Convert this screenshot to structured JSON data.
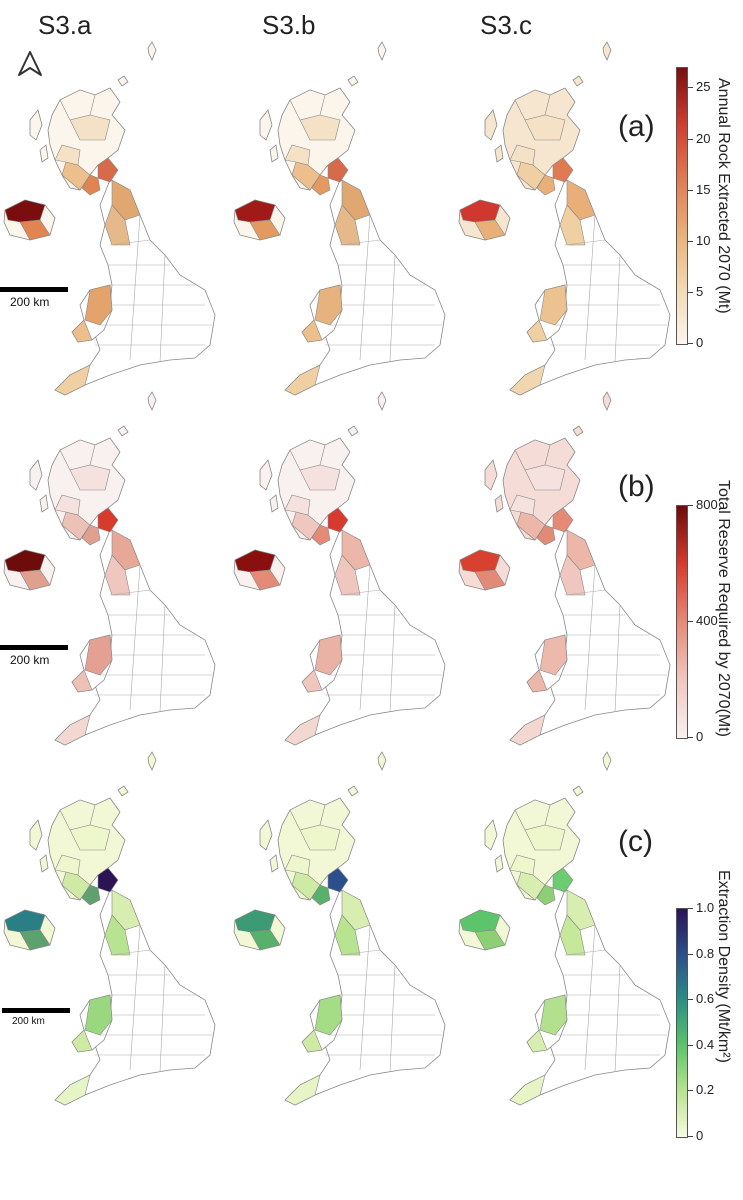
{
  "columns": [
    "S3.a",
    "S3.b",
    "S3.c"
  ],
  "panels": [
    {
      "letter": "(a)",
      "colorbar": {
        "label": "Annual Rock Extracted 2070 (Mt)",
        "ticks": [
          "0",
          "5",
          "10",
          "15",
          "20",
          "25"
        ],
        "tick_values": [
          0,
          5,
          10,
          15,
          20,
          25
        ],
        "max": 27,
        "colors": [
          "#fcf5ec",
          "#f2d9b4",
          "#e8b078",
          "#e07a52",
          "#cf3b30",
          "#7a0e0e"
        ]
      },
      "scale_label": "200 km"
    },
    {
      "letter": "(b)",
      "colorbar": {
        "label": "Total Reserve Required by 2070(Mt)",
        "ticks": [
          "0",
          "400",
          "800"
        ],
        "tick_values": [
          0,
          400,
          800
        ],
        "max": 800,
        "colors": [
          "#f9f1ef",
          "#f0c7bf",
          "#e68a78",
          "#d83a2e",
          "#6e0b0b"
        ]
      },
      "scale_label": "200 km"
    },
    {
      "letter": "(c)",
      "colorbar": {
        "label": "Extraction Density (Mt/km²)",
        "ticks": [
          "0",
          "0.2",
          "0.4",
          "0.6",
          "0.8",
          "1.0"
        ],
        "tick_values": [
          0,
          0.2,
          0.4,
          0.6,
          0.8,
          1.0
        ],
        "max": 1.0,
        "colors": [
          "#f7fbe0",
          "#b8e390",
          "#5cc46a",
          "#2a8f84",
          "#2a4f8a",
          "#2b1456"
        ]
      },
      "scale_label": "200 km"
    }
  ],
  "north_arrow": "north-arrow",
  "region_fills": {
    "a": [
      [
        "#fcf5ec",
        "#f5e2c6",
        "#ecbf8c",
        "#e08452",
        "#7a0e0e",
        "#d66a4a",
        "#e0a870",
        "#e6b98a",
        "#e3a36a",
        "#f0cfa3"
      ],
      [
        "#fcf5ec",
        "#f5e2c6",
        "#ecbf8c",
        "#e29a60",
        "#a01a18",
        "#d66a4a",
        "#e0a870",
        "#e6b98a",
        "#e6b27e",
        "#f0cfa3"
      ],
      [
        "#f6e6cf",
        "#f5e2c6",
        "#f0cfa3",
        "#e8b078",
        "#d0372e",
        "#e07a52",
        "#e8b078",
        "#f0cfa3",
        "#ecc290",
        "#f0d7b0"
      ]
    ],
    "b": [
      [
        "#f9f1ef",
        "#f5e2de",
        "#ecc1b6",
        "#e0a090",
        "#6e0b0b",
        "#d83a2e",
        "#e8a898",
        "#f0c7bf",
        "#e4a092",
        "#f3d8d2"
      ],
      [
        "#f9f1ef",
        "#f5e2de",
        "#f0c7bf",
        "#e68a78",
        "#8a1010",
        "#d83a2e",
        "#ecb6a8",
        "#f0c7bf",
        "#eab2a4",
        "#f3d8d2"
      ],
      [
        "#f6dcd6",
        "#f5e2de",
        "#ecb6a8",
        "#e28a78",
        "#d84030",
        "#e68a78",
        "#ecb6a8",
        "#f0c7bf",
        "#eeb9ad",
        "#f3d8d2"
      ]
    ],
    "c": [
      [
        "#f2f8d6",
        "#eef6cc",
        "#cfeaa4",
        "#5ea06e",
        "#2a7f84",
        "#2b1456",
        "#d8eeb0",
        "#b8e390",
        "#9ad880",
        "#e6f4c6"
      ],
      [
        "#f2f8d6",
        "#eef6cc",
        "#cfeaa4",
        "#58b06a",
        "#3c9a74",
        "#2a4f8a",
        "#d8eeb0",
        "#b8e390",
        "#a5dc86",
        "#e6f4c6"
      ],
      [
        "#f2f8d6",
        "#eef6cc",
        "#d8eeb0",
        "#8ccf74",
        "#5cc46a",
        "#6ccc72",
        "#d8eeb0",
        "#c6e89a",
        "#b2e08c",
        "#e6f4c6"
      ]
    ]
  }
}
